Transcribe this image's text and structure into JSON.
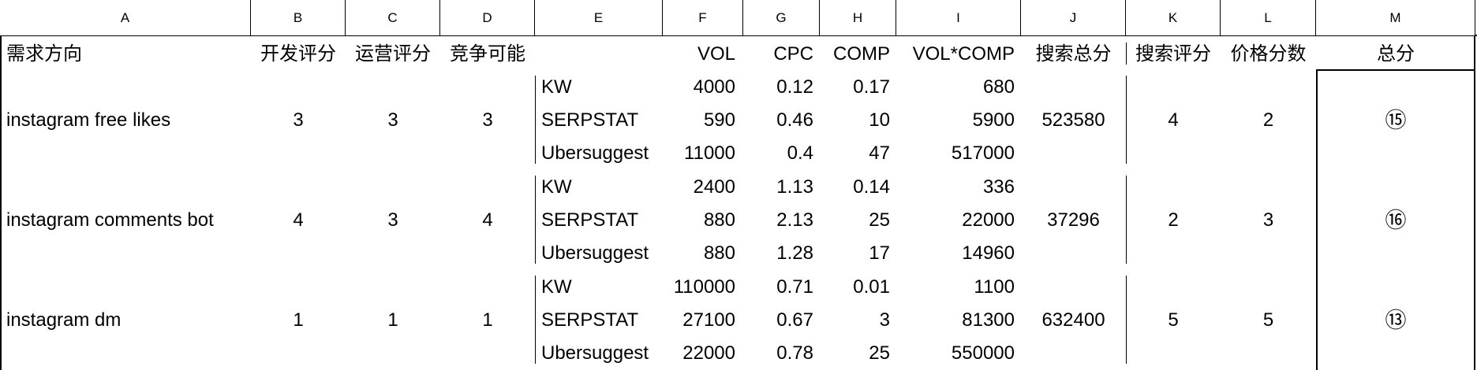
{
  "columns": [
    "A",
    "B",
    "C",
    "D",
    "E",
    "F",
    "G",
    "H",
    "I",
    "J",
    "K",
    "L",
    "M"
  ],
  "header": {
    "a": "需求方向",
    "b": "开发评分",
    "c": "运营评分",
    "d": "竞争可能",
    "f": "VOL",
    "g": "CPC",
    "h": "COMP",
    "i": "VOL*COMP",
    "j": "搜索总分",
    "k": "搜索评分",
    "l": "价格分数",
    "m": "总分"
  },
  "groups": [
    {
      "name": "instagram free likes",
      "dev": "3",
      "ops": "3",
      "comp": "3",
      "rows": [
        {
          "src": "KW",
          "vol": "4000",
          "cpc": "0.12",
          "comp": "0.17",
          "vc": "680"
        },
        {
          "src": "SERPSTAT",
          "vol": "590",
          "cpc": "0.46",
          "comp": "10",
          "vc": "5900"
        },
        {
          "src": "Ubersuggest",
          "vol": "11000",
          "cpc": "0.4",
          "comp": "47",
          "vc": "517000"
        }
      ],
      "search_total": "523580",
      "search_score": "4",
      "price_score": "2",
      "total": "⑮"
    },
    {
      "name": "instagram comments bot",
      "dev": "4",
      "ops": "3",
      "comp": "4",
      "rows": [
        {
          "src": "KW",
          "vol": "2400",
          "cpc": "1.13",
          "comp": "0.14",
          "vc": "336"
        },
        {
          "src": "SERPSTAT",
          "vol": "880",
          "cpc": "2.13",
          "comp": "25",
          "vc": "22000"
        },
        {
          "src": "Ubersuggest",
          "vol": "880",
          "cpc": "1.28",
          "comp": "17",
          "vc": "14960"
        }
      ],
      "search_total": "37296",
      "search_score": "2",
      "price_score": "3",
      "total": "⑯"
    },
    {
      "name": "instagram dm",
      "dev": "1",
      "ops": "1",
      "comp": "1",
      "rows": [
        {
          "src": "KW",
          "vol": "110000",
          "cpc": "0.71",
          "comp": "0.01",
          "vc": "1100"
        },
        {
          "src": "SERPSTAT",
          "vol": "27100",
          "cpc": "0.67",
          "comp": "3",
          "vc": "81300"
        },
        {
          "src": "Ubersuggest",
          "vol": "22000",
          "cpc": "0.78",
          "comp": "25",
          "vc": "550000"
        }
      ],
      "search_total": "632400",
      "search_score": "5",
      "price_score": "5",
      "total": "⑬"
    }
  ]
}
